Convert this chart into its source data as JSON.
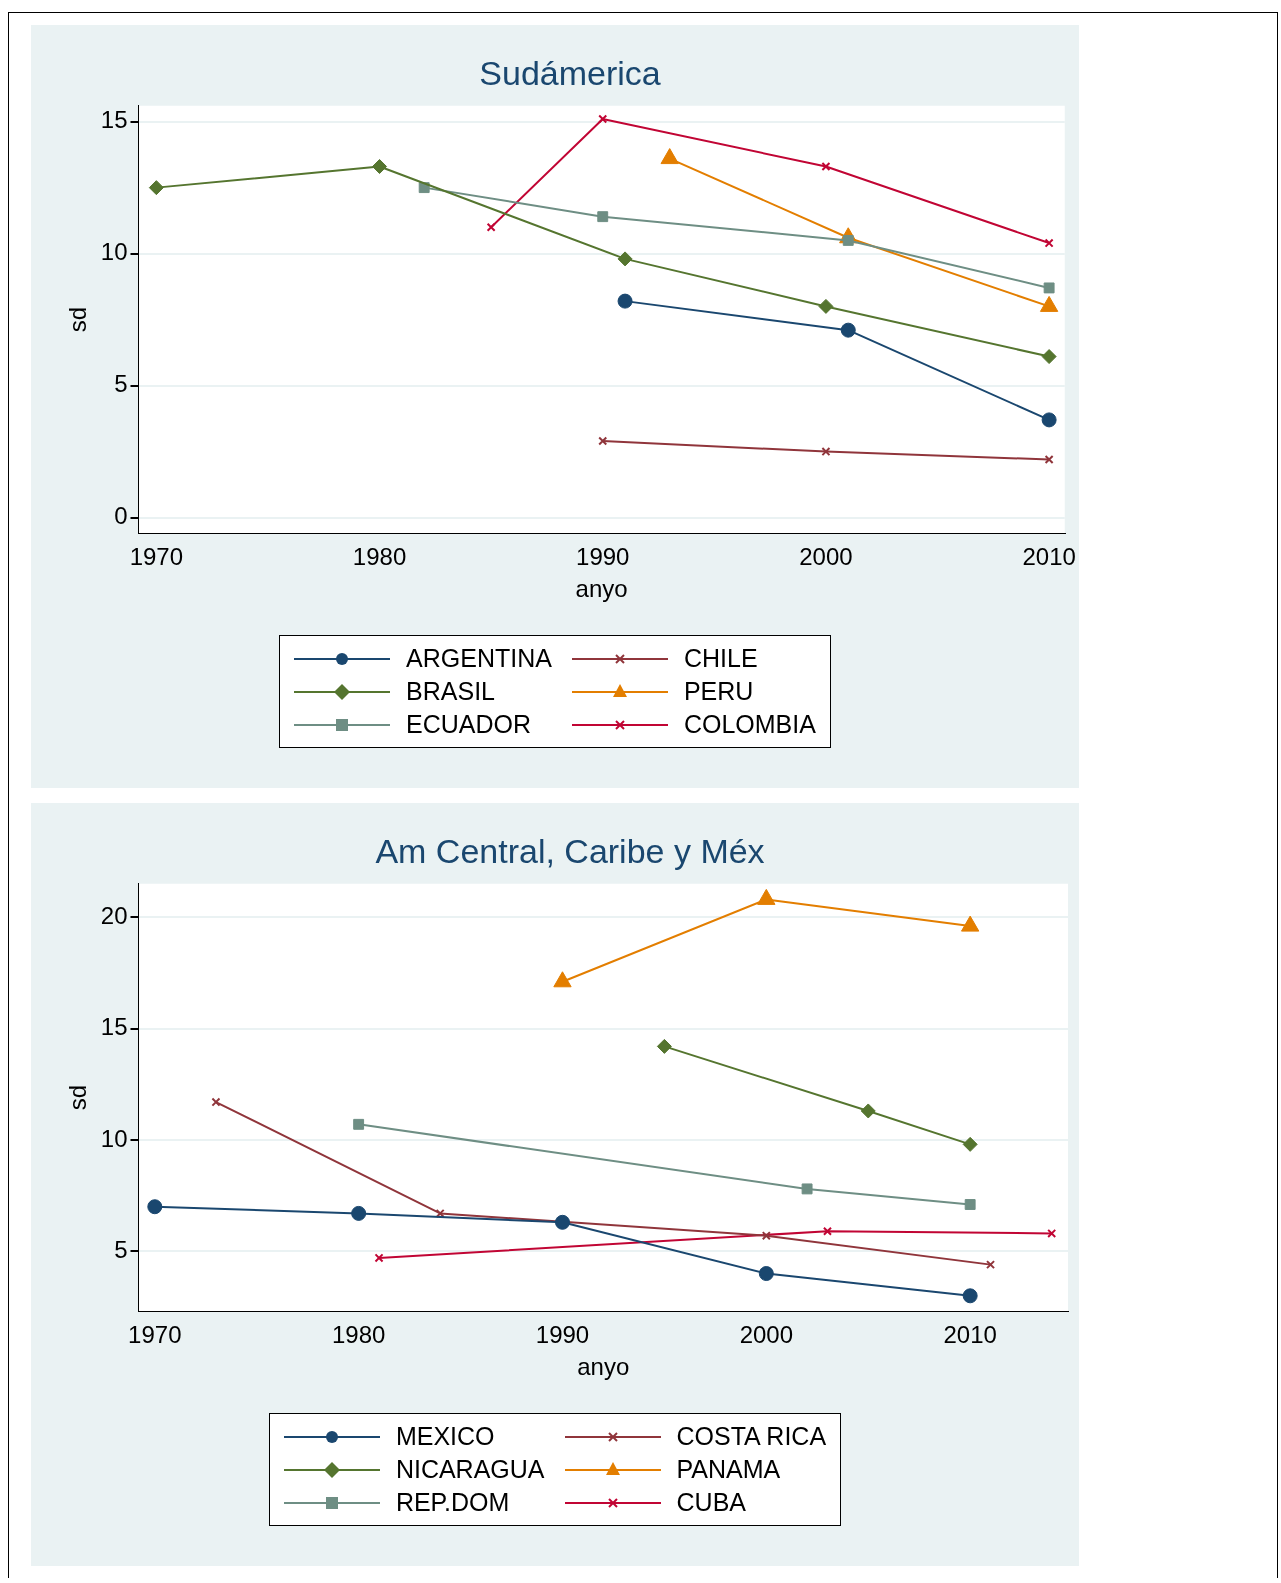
{
  "chart_data": [
    {
      "type": "line",
      "title": "Sudámerica",
      "xlabel": "anyo",
      "ylabel": "sd",
      "xlim": [
        1969.2,
        2010.7
      ],
      "xticks": [
        1970,
        1980,
        1990,
        2000,
        2010
      ],
      "ylim": [
        -0.6,
        15.6
      ],
      "yticks": [
        0,
        5,
        10,
        15
      ],
      "grid": "y",
      "legend": "bottom",
      "series": [
        {
          "name": "ARGENTINA",
          "color": "#1a476f",
          "marker": "circle",
          "x": [
            1991,
            2001,
            2010
          ],
          "values": [
            8.2,
            7.1,
            3.7
          ]
        },
        {
          "name": "BRASIL",
          "color": "#55752f",
          "marker": "diamond",
          "x": [
            1970,
            1980,
            1991,
            2000,
            2010
          ],
          "values": [
            12.5,
            13.3,
            9.8,
            8.0,
            6.1
          ]
        },
        {
          "name": "ECUADOR",
          "color": "#6e8e84",
          "marker": "square",
          "x": [
            1982,
            1990,
            2001,
            2010
          ],
          "values": [
            12.5,
            11.4,
            10.5,
            8.7
          ]
        },
        {
          "name": "CHILE",
          "color": "#90353b",
          "marker": "cross",
          "x": [
            1990,
            2000,
            2010
          ],
          "values": [
            2.9,
            2.5,
            2.2
          ]
        },
        {
          "name": "PERU",
          "color": "#e37e00",
          "marker": "triangle",
          "x": [
            1993,
            2001,
            2010
          ],
          "values": [
            13.6,
            10.6,
            8.0
          ]
        },
        {
          "name": "COLOMBIA",
          "color": "#c10534",
          "marker": "cross",
          "x": [
            1985,
            1990,
            2000,
            2010
          ],
          "values": [
            11.0,
            15.1,
            13.3,
            10.4
          ]
        }
      ]
    },
    {
      "type": "line",
      "title": "Am Central, Caribe y Méx",
      "xlabel": "anyo",
      "ylabel": "sd",
      "xlim": [
        1969.2,
        2014.8
      ],
      "xticks": [
        1970,
        1980,
        1990,
        2000,
        2010
      ],
      "ylim": [
        2.3,
        21.5
      ],
      "yticks": [
        5,
        10,
        15,
        20
      ],
      "grid": "y",
      "legend": "bottom",
      "series": [
        {
          "name": "MEXICO",
          "color": "#1a476f",
          "marker": "circle",
          "x": [
            1970,
            1980,
            1990,
            2000,
            2010
          ],
          "values": [
            7.0,
            6.7,
            6.3,
            4.0,
            3.0
          ]
        },
        {
          "name": "NICARAGUA",
          "color": "#55752f",
          "marker": "diamond",
          "x": [
            1995,
            2005,
            2010
          ],
          "values": [
            14.2,
            11.3,
            9.8
          ]
        },
        {
          "name": "REP.DOM",
          "color": "#6e8e84",
          "marker": "square",
          "x": [
            1980,
            2002,
            2010
          ],
          "values": [
            10.7,
            7.8,
            7.1
          ]
        },
        {
          "name": "COSTA RICA",
          "color": "#90353b",
          "marker": "cross",
          "x": [
            1973,
            1984,
            2000,
            2011
          ],
          "values": [
            11.7,
            6.7,
            5.7,
            4.4
          ]
        },
        {
          "name": "PANAMA",
          "color": "#e37e00",
          "marker": "triangle",
          "x": [
            1990,
            2000,
            2010
          ],
          "values": [
            17.1,
            20.8,
            19.6
          ]
        },
        {
          "name": "CUBA",
          "color": "#c10534",
          "marker": "cross",
          "x": [
            1981,
            2003,
            2014
          ],
          "values": [
            4.7,
            5.9,
            5.8
          ]
        }
      ]
    }
  ]
}
